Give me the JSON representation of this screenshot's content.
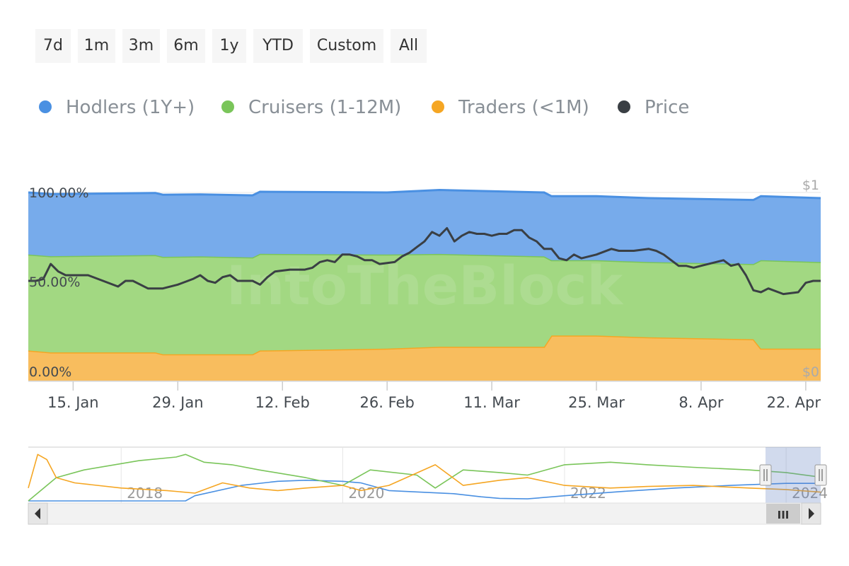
{
  "range_selector": {
    "buttons": [
      "7d",
      "1m",
      "3m",
      "6m",
      "1y",
      "YTD",
      "Custom",
      "All"
    ]
  },
  "legend": {
    "items": [
      {
        "label": "Hodlers (1Y+)",
        "color": "#4a90e2"
      },
      {
        "label": "Cruisers (1-12M)",
        "color": "#7ac55a"
      },
      {
        "label": "Traders (<1M)",
        "color": "#f5a623"
      },
      {
        "label": "Price",
        "color": "#3a3f44"
      }
    ]
  },
  "watermark": "IntoTheBlock",
  "chart_data": {
    "type": "area",
    "title": "",
    "x_start": "2024-01-09",
    "x_end": "2024-04-24",
    "x_ticks": [
      {
        "date": "2024-01-15",
        "label": "15. Jan"
      },
      {
        "date": "2024-01-29",
        "label": "29. Jan"
      },
      {
        "date": "2024-02-12",
        "label": "12. Feb"
      },
      {
        "date": "2024-02-26",
        "label": "26. Feb"
      },
      {
        "date": "2024-03-11",
        "label": "11. Mar"
      },
      {
        "date": "2024-03-25",
        "label": "25. Mar"
      },
      {
        "date": "2024-04-08",
        "label": "8. Apr"
      },
      {
        "date": "2024-04-22",
        "label": "22. Apr"
      }
    ],
    "y_left": {
      "ticks": [
        {
          "value": 0,
          "label": "0.00%"
        },
        {
          "value": 50,
          "label": "50.00%"
        },
        {
          "value": 100,
          "label": "100.00%"
        }
      ],
      "range": [
        0,
        100
      ]
    },
    "y_right": {
      "ticks": [
        {
          "value": 0,
          "label": "$0"
        },
        {
          "value": 1,
          "label": "$1"
        }
      ],
      "range": [
        0,
        1
      ]
    },
    "stacking": "percent",
    "series": [
      {
        "name": "Hodlers (1Y+)",
        "color": "#4a90e2",
        "kind": "area",
        "points": [
          [
            "2024-01-09",
            33
          ],
          [
            "2024-02-26",
            33
          ],
          [
            "2024-03-04",
            34
          ],
          [
            "2024-04-24",
            34
          ]
        ]
      },
      {
        "name": "Cruisers (1-12M)",
        "color": "#7ac55a",
        "kind": "area",
        "points": [
          [
            "2024-01-09",
            51
          ],
          [
            "2024-02-01",
            52
          ],
          [
            "2024-02-26",
            50
          ],
          [
            "2024-03-18",
            48
          ],
          [
            "2024-03-19",
            40
          ],
          [
            "2024-04-15",
            40
          ],
          [
            "2024-04-16",
            47
          ],
          [
            "2024-04-24",
            46
          ]
        ]
      },
      {
        "name": "Traders (<1M)",
        "color": "#f5a623",
        "kind": "area",
        "points": [
          [
            "2024-01-09",
            16
          ],
          [
            "2024-01-12",
            15
          ],
          [
            "2024-01-26",
            15
          ],
          [
            "2024-01-27",
            14
          ],
          [
            "2024-02-08",
            14
          ],
          [
            "2024-02-09",
            16
          ],
          [
            "2024-02-26",
            17
          ],
          [
            "2024-03-04",
            18
          ],
          [
            "2024-03-18",
            18
          ],
          [
            "2024-03-19",
            24
          ],
          [
            "2024-03-25",
            24
          ],
          [
            "2024-04-01",
            23
          ],
          [
            "2024-04-15",
            22
          ],
          [
            "2024-04-16",
            17
          ],
          [
            "2024-04-24",
            17
          ]
        ]
      },
      {
        "name": "Price",
        "color": "#3a3f44",
        "kind": "line",
        "axis": "right",
        "points": [
          [
            "2024-01-09",
            0.53
          ],
          [
            "2024-01-10",
            0.53
          ],
          [
            "2024-01-11",
            0.54
          ],
          [
            "2024-01-12",
            0.62
          ],
          [
            "2024-01-13",
            0.58
          ],
          [
            "2024-01-14",
            0.56
          ],
          [
            "2024-01-17",
            0.56
          ],
          [
            "2024-01-19",
            0.53
          ],
          [
            "2024-01-21",
            0.5
          ],
          [
            "2024-01-22",
            0.53
          ],
          [
            "2024-01-23",
            0.53
          ],
          [
            "2024-01-25",
            0.49
          ],
          [
            "2024-01-27",
            0.49
          ],
          [
            "2024-01-29",
            0.51
          ],
          [
            "2024-01-31",
            0.54
          ],
          [
            "2024-02-01",
            0.56
          ],
          [
            "2024-02-02",
            0.53
          ],
          [
            "2024-02-03",
            0.52
          ],
          [
            "2024-02-04",
            0.55
          ],
          [
            "2024-02-05",
            0.56
          ],
          [
            "2024-02-06",
            0.53
          ],
          [
            "2024-02-08",
            0.53
          ],
          [
            "2024-02-09",
            0.51
          ],
          [
            "2024-02-10",
            0.55
          ],
          [
            "2024-02-11",
            0.58
          ],
          [
            "2024-02-13",
            0.59
          ],
          [
            "2024-02-15",
            0.59
          ],
          [
            "2024-02-16",
            0.6
          ],
          [
            "2024-02-17",
            0.63
          ],
          [
            "2024-02-18",
            0.64
          ],
          [
            "2024-02-19",
            0.63
          ],
          [
            "2024-02-20",
            0.67
          ],
          [
            "2024-02-21",
            0.67
          ],
          [
            "2024-02-22",
            0.66
          ],
          [
            "2024-02-23",
            0.64
          ],
          [
            "2024-02-24",
            0.64
          ],
          [
            "2024-02-25",
            0.62
          ],
          [
            "2024-02-27",
            0.63
          ],
          [
            "2024-02-28",
            0.66
          ],
          [
            "2024-02-29",
            0.68
          ],
          [
            "2024-03-01",
            0.71
          ],
          [
            "2024-03-02",
            0.74
          ],
          [
            "2024-03-03",
            0.79
          ],
          [
            "2024-03-04",
            0.77
          ],
          [
            "2024-03-05",
            0.81
          ],
          [
            "2024-03-06",
            0.74
          ],
          [
            "2024-03-07",
            0.77
          ],
          [
            "2024-03-08",
            0.79
          ],
          [
            "2024-03-09",
            0.78
          ],
          [
            "2024-03-10",
            0.78
          ],
          [
            "2024-03-11",
            0.77
          ],
          [
            "2024-03-12",
            0.78
          ],
          [
            "2024-03-13",
            0.78
          ],
          [
            "2024-03-14",
            0.8
          ],
          [
            "2024-03-15",
            0.8
          ],
          [
            "2024-03-16",
            0.76
          ],
          [
            "2024-03-17",
            0.74
          ],
          [
            "2024-03-18",
            0.7
          ],
          [
            "2024-03-19",
            0.7
          ],
          [
            "2024-03-20",
            0.65
          ],
          [
            "2024-03-21",
            0.64
          ],
          [
            "2024-03-22",
            0.67
          ],
          [
            "2024-03-23",
            0.65
          ],
          [
            "2024-03-24",
            0.66
          ],
          [
            "2024-03-25",
            0.67
          ],
          [
            "2024-03-27",
            0.7
          ],
          [
            "2024-03-28",
            0.69
          ],
          [
            "2024-03-30",
            0.69
          ],
          [
            "2024-04-01",
            0.7
          ],
          [
            "2024-04-02",
            0.69
          ],
          [
            "2024-04-03",
            0.67
          ],
          [
            "2024-04-04",
            0.64
          ],
          [
            "2024-04-05",
            0.61
          ],
          [
            "2024-04-06",
            0.61
          ],
          [
            "2024-04-07",
            0.6
          ],
          [
            "2024-04-08",
            0.61
          ],
          [
            "2024-04-10",
            0.63
          ],
          [
            "2024-04-11",
            0.64
          ],
          [
            "2024-04-12",
            0.61
          ],
          [
            "2024-04-13",
            0.62
          ],
          [
            "2024-04-14",
            0.56
          ],
          [
            "2024-04-15",
            0.48
          ],
          [
            "2024-04-16",
            0.47
          ],
          [
            "2024-04-17",
            0.49
          ],
          [
            "2024-04-19",
            0.46
          ],
          [
            "2024-04-21",
            0.47
          ],
          [
            "2024-04-22",
            0.52
          ],
          [
            "2024-04-23",
            0.53
          ],
          [
            "2024-04-24",
            0.53
          ]
        ]
      }
    ],
    "navigator": {
      "labels": [
        "2018",
        "2020",
        "2022",
        "2024"
      ],
      "series": [
        {
          "name": "Hodlers (1Y+)",
          "color": "#4a90e2",
          "points": [
            [
              "2017-03-01",
              0
            ],
            [
              "2017-08-01",
              0
            ],
            [
              "2018-08-01",
              0
            ],
            [
              "2018-09-01",
              10
            ],
            [
              "2019-02-01",
              30
            ],
            [
              "2019-06-01",
              38
            ],
            [
              "2019-09-01",
              40
            ],
            [
              "2020-01-01",
              38
            ],
            [
              "2020-03-01",
              35
            ],
            [
              "2020-06-01",
              20
            ],
            [
              "2021-01-01",
              14
            ],
            [
              "2021-04-01",
              8
            ],
            [
              "2021-06-01",
              5
            ],
            [
              "2021-09-01",
              4
            ],
            [
              "2022-01-01",
              10
            ],
            [
              "2022-07-01",
              18
            ],
            [
              "2023-01-01",
              25
            ],
            [
              "2023-07-01",
              30
            ],
            [
              "2024-01-01",
              34
            ],
            [
              "2024-04-24",
              34
            ]
          ]
        },
        {
          "name": "Cruisers (1-12M)",
          "color": "#7ac55a",
          "points": [
            [
              "2017-03-01",
              0
            ],
            [
              "2017-06-01",
              45
            ],
            [
              "2017-09-01",
              60
            ],
            [
              "2018-03-01",
              78
            ],
            [
              "2018-07-01",
              85
            ],
            [
              "2018-08-01",
              90
            ],
            [
              "2018-10-01",
              75
            ],
            [
              "2019-01-01",
              70
            ],
            [
              "2019-04-01",
              60
            ],
            [
              "2019-09-01",
              45
            ],
            [
              "2020-01-01",
              30
            ],
            [
              "2020-04-01",
              60
            ],
            [
              "2020-09-01",
              50
            ],
            [
              "2020-11-01",
              25
            ],
            [
              "2021-02-01",
              60
            ],
            [
              "2021-06-01",
              55
            ],
            [
              "2021-09-01",
              50
            ],
            [
              "2022-01-01",
              70
            ],
            [
              "2022-06-01",
              75
            ],
            [
              "2022-10-01",
              70
            ],
            [
              "2023-03-01",
              65
            ],
            [
              "2023-09-01",
              60
            ],
            [
              "2024-01-01",
              55
            ],
            [
              "2024-04-24",
              46
            ]
          ]
        },
        {
          "name": "Traders (<1M)",
          "color": "#f5a623",
          "points": [
            [
              "2017-03-01",
              25
            ],
            [
              "2017-04-01",
              90
            ],
            [
              "2017-05-01",
              80
            ],
            [
              "2017-06-01",
              45
            ],
            [
              "2017-08-01",
              35
            ],
            [
              "2018-01-01",
              25
            ],
            [
              "2018-06-01",
              20
            ],
            [
              "2018-09-01",
              15
            ],
            [
              "2018-12-01",
              35
            ],
            [
              "2019-03-01",
              25
            ],
            [
              "2019-06-01",
              20
            ],
            [
              "2019-09-01",
              25
            ],
            [
              "2020-01-01",
              30
            ],
            [
              "2020-03-01",
              20
            ],
            [
              "2020-06-01",
              30
            ],
            [
              "2020-11-01",
              70
            ],
            [
              "2021-02-01",
              30
            ],
            [
              "2021-06-01",
              40
            ],
            [
              "2021-09-01",
              45
            ],
            [
              "2022-01-01",
              30
            ],
            [
              "2022-06-01",
              25
            ],
            [
              "2022-10-01",
              28
            ],
            [
              "2023-03-01",
              30
            ],
            [
              "2023-09-01",
              25
            ],
            [
              "2024-01-01",
              22
            ],
            [
              "2024-04-24",
              17
            ]
          ]
        }
      ],
      "selected_start": "2024-01-09",
      "selected_end": "2024-04-24",
      "scrollbar_grip": "III"
    }
  }
}
